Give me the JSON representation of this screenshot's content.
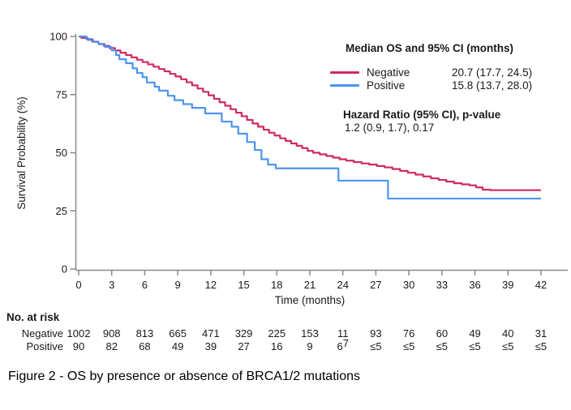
{
  "figure": {
    "caption": "Figure 2 - OS by presence or absence of BRCA1/2 mutations"
  },
  "chart_data": {
    "type": "line",
    "subtype": "kaplan-meier-step",
    "title": "",
    "xlabel": "Time (months)",
    "ylabel": "Survival Probability (%)",
    "xlim": [
      0,
      42
    ],
    "ylim": [
      0,
      100
    ],
    "xticks": [
      0,
      3,
      6,
      9,
      12,
      15,
      18,
      21,
      24,
      27,
      30,
      33,
      36,
      39,
      42
    ],
    "yticks": [
      0,
      25,
      50,
      75,
      100
    ],
    "grid": false,
    "legend_position": "top-right",
    "axis_color": "#8a8a8a",
    "series": [
      {
        "name": "Negative",
        "color": "#CE2A63",
        "points": [
          [
            0,
            100
          ],
          [
            0.25,
            99.4
          ],
          [
            0.8,
            98.6
          ],
          [
            1.3,
            97.7
          ],
          [
            1.8,
            96.8
          ],
          [
            2.3,
            95.9
          ],
          [
            2.8,
            95
          ],
          [
            3.3,
            94
          ],
          [
            3.8,
            93
          ],
          [
            4.3,
            92
          ],
          [
            4.8,
            91
          ],
          [
            5.3,
            90
          ],
          [
            5.8,
            89
          ],
          [
            6.3,
            88
          ],
          [
            6.8,
            87
          ],
          [
            7.3,
            86
          ],
          [
            7.8,
            85
          ],
          [
            8.3,
            83.9
          ],
          [
            8.8,
            82.8
          ],
          [
            9.3,
            81.6
          ],
          [
            9.8,
            80.3
          ],
          [
            10.3,
            79
          ],
          [
            10.8,
            77.6
          ],
          [
            11.3,
            76.2
          ],
          [
            11.8,
            74.7
          ],
          [
            12.3,
            73.2
          ],
          [
            12.8,
            71.7
          ],
          [
            13.3,
            70.2
          ],
          [
            13.8,
            68.7
          ],
          [
            14.3,
            67.2
          ],
          [
            14.8,
            65.7
          ],
          [
            15.3,
            64.1
          ],
          [
            15.8,
            62.6
          ],
          [
            16.3,
            61.2
          ],
          [
            16.8,
            59.9
          ],
          [
            17.3,
            58.6
          ],
          [
            17.8,
            57.4
          ],
          [
            18.3,
            56.2
          ],
          [
            18.8,
            55.1
          ],
          [
            19.3,
            54
          ],
          [
            19.8,
            53
          ],
          [
            20.3,
            52
          ],
          [
            20.8,
            50.8
          ],
          [
            21.3,
            50
          ],
          [
            21.9,
            49.3
          ],
          [
            22.5,
            48.6
          ],
          [
            23.1,
            47.9
          ],
          [
            23.7,
            47.2
          ],
          [
            24.3,
            46.6
          ],
          [
            25,
            46
          ],
          [
            25.7,
            45.4
          ],
          [
            26.4,
            44.9
          ],
          [
            27.1,
            44.3
          ],
          [
            27.8,
            43.7
          ],
          [
            28.5,
            43
          ],
          [
            29.2,
            42.2
          ],
          [
            29.9,
            41.4
          ],
          [
            30.6,
            40.6
          ],
          [
            31.3,
            39.8
          ],
          [
            32,
            39
          ],
          [
            32.7,
            38.3
          ],
          [
            33.4,
            37.6
          ],
          [
            34.1,
            36.9
          ],
          [
            34.8,
            36.4
          ],
          [
            35.5,
            36
          ],
          [
            36.1,
            35.1
          ],
          [
            36.7,
            34.1
          ],
          [
            37.4,
            33.9
          ],
          [
            42,
            33.9
          ]
        ]
      },
      {
        "name": "Positive",
        "color": "#4D94F0",
        "points": [
          [
            0,
            100
          ],
          [
            0.7,
            98.9
          ],
          [
            1.2,
            97.8
          ],
          [
            1.8,
            96.7
          ],
          [
            2.4,
            95.5
          ],
          [
            3,
            94
          ],
          [
            3.4,
            92
          ],
          [
            3.7,
            90.2
          ],
          [
            4.3,
            88.5
          ],
          [
            4.9,
            86.3
          ],
          [
            5.3,
            84.3
          ],
          [
            5.8,
            82.5
          ],
          [
            6.2,
            80.2
          ],
          [
            6.9,
            78.4
          ],
          [
            7.3,
            76.7
          ],
          [
            8.1,
            74.5
          ],
          [
            8.7,
            72.6
          ],
          [
            9.5,
            70.9
          ],
          [
            10.3,
            69.3
          ],
          [
            11.5,
            66.9
          ],
          [
            13,
            63.4
          ],
          [
            13.9,
            61.2
          ],
          [
            14.5,
            58.2
          ],
          [
            15.3,
            54.6
          ],
          [
            16,
            51.2
          ],
          [
            16.6,
            47.2
          ],
          [
            17.2,
            44.9
          ],
          [
            17.9,
            43.3
          ],
          [
            23.6,
            38
          ],
          [
            28.1,
            30.3
          ],
          [
            42,
            30.3
          ]
        ]
      }
    ]
  },
  "legend": {
    "title": "Median OS and 95% CI (months)",
    "entries": [
      {
        "label": "Negative",
        "value": "20.7 (17.7, 24.5)",
        "color": "#CE2A63"
      },
      {
        "label": "Positive",
        "value": "15.8 (13.7, 28.0)",
        "color": "#4D94F0"
      }
    ],
    "hr_title": "Hazard Ratio (95% CI), p-value",
    "hr_value": "1.2 (0.9, 1.7), 0.17"
  },
  "risk_table": {
    "title": "No. at risk",
    "times": [
      0,
      3,
      6,
      9,
      12,
      15,
      18,
      21,
      24,
      27,
      30,
      33,
      36,
      39,
      42
    ],
    "rows": [
      {
        "label": "Negative",
        "values": [
          "1002",
          "908",
          "813",
          "665",
          "471",
          "329",
          "225",
          "153",
          "11",
          "93",
          "76",
          "60",
          "49",
          "40",
          "31"
        ]
      },
      {
        "label": "Positive",
        "values": [
          "90",
          "82",
          "68",
          "49",
          "39",
          "27",
          "16",
          "9",
          "6|7",
          "≤5",
          "≤5",
          "≤5",
          "≤5",
          "≤5",
          "≤5"
        ]
      }
    ]
  }
}
